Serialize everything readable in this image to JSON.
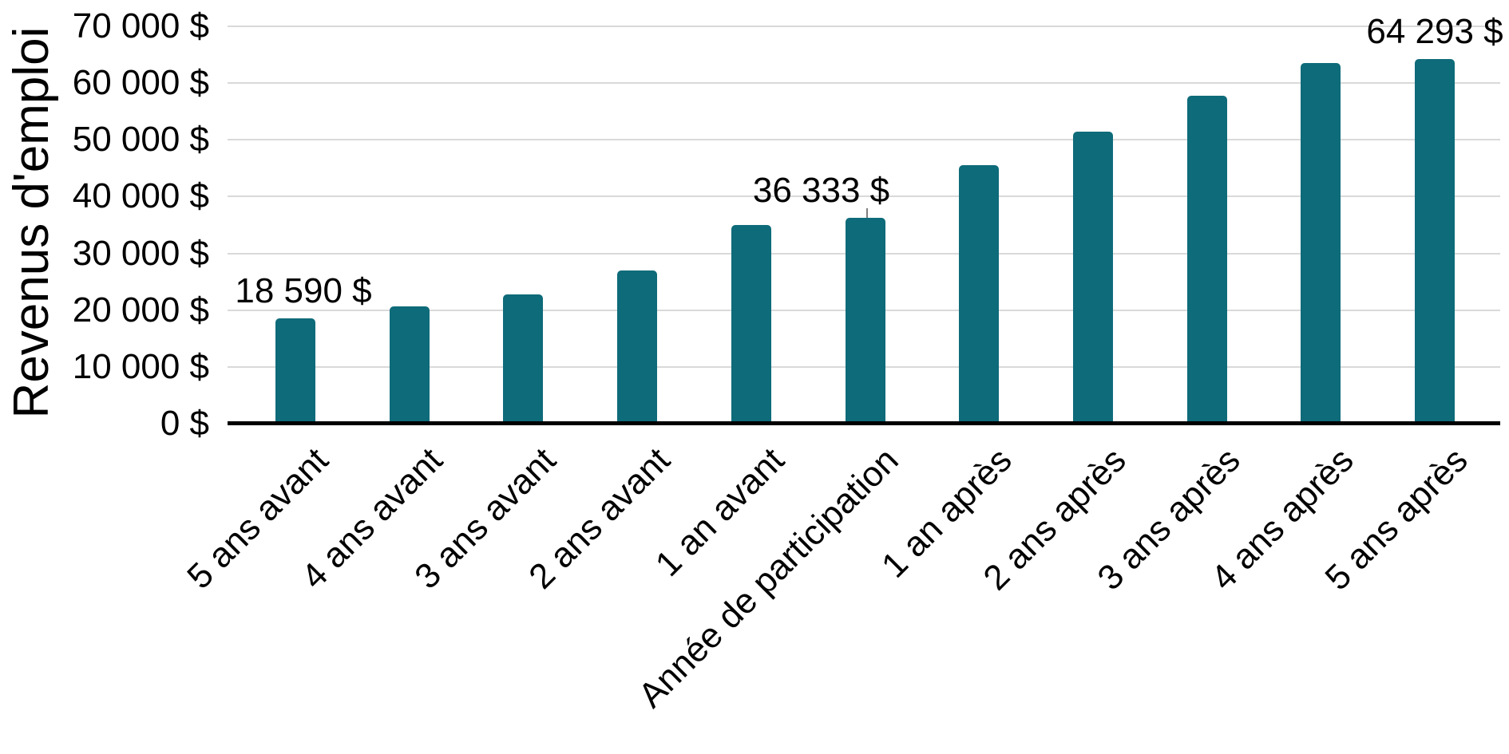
{
  "chart_data": {
    "type": "bar",
    "title": "",
    "ylabel": "Revenus d'emploi",
    "xlabel": "",
    "categories": [
      "5 ans avant",
      "4 ans avant",
      "3 ans avant",
      "2 ans avant",
      "1 an avant",
      "Année de participation",
      "1 an après",
      "2 ans après",
      "3 ans après",
      "4 ans après",
      "5 ans après"
    ],
    "values": [
      18590,
      20700,
      22800,
      27000,
      35000,
      36333,
      45500,
      51500,
      57800,
      63600,
      64293
    ],
    "data_labels": {
      "0": "18 590 $",
      "5": "36 333 $",
      "10": "64 293 $"
    },
    "ytick_values": [
      0,
      10000,
      20000,
      30000,
      40000,
      50000,
      60000,
      70000
    ],
    "ytick_labels": [
      "0 $",
      "10 000 $",
      "20 000 $",
      "30 000 $",
      "40 000 $",
      "50 000 $",
      "60 000 $",
      "70 000 $"
    ],
    "ylim": [
      0,
      70000
    ],
    "grid": "horizontal",
    "legend": "none",
    "bar_color": "#0e6b79",
    "axis_color": "#000000",
    "gridline_color": "#d9d9d9",
    "leader_line_color": "#7f7f7f"
  }
}
